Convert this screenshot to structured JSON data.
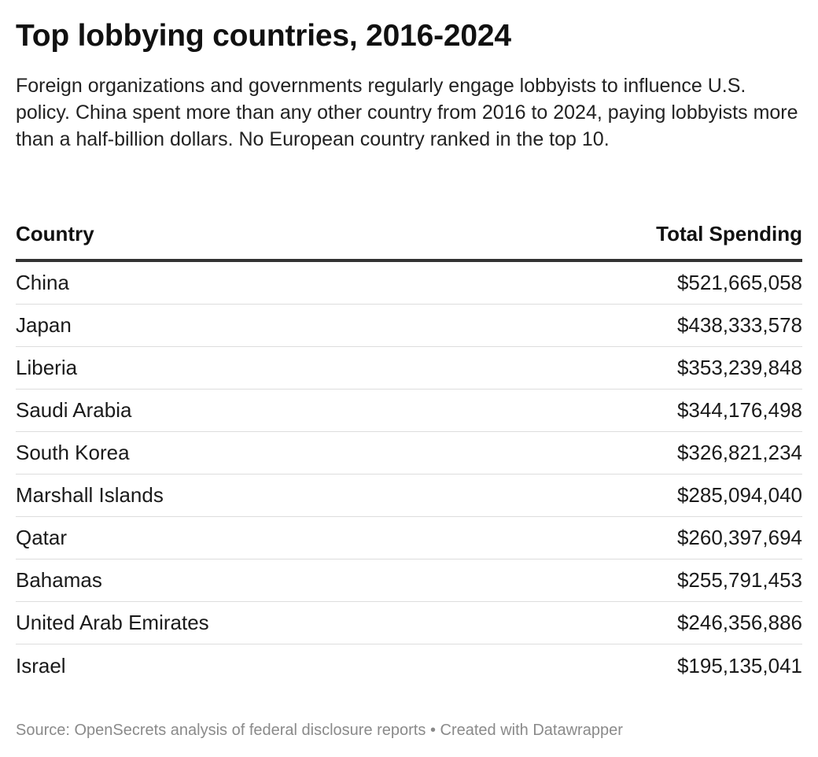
{
  "title": "Top lobbying countries, 2016-2024",
  "subtitle": "Foreign organizations and governments regularly engage lobbyists to influence U.S. policy. China spent more than any other country from 2016 to 2024, paying lobbyists more than a half-billion dollars. No European country ranked in the top 10.",
  "footer": {
    "source": "Source: OpenSecrets analysis of federal disclosure reports",
    "separator": "•",
    "credit": "Created with Datawrapper"
  },
  "chart_data": {
    "type": "table",
    "title": "Top lobbying countries, 2016-2024",
    "columns": [
      "Country",
      "Total Spending"
    ],
    "rows": [
      {
        "country": "China",
        "spending_display": "$521,665,058",
        "spending": 521665058
      },
      {
        "country": "Japan",
        "spending_display": "$438,333,578",
        "spending": 438333578
      },
      {
        "country": "Liberia",
        "spending_display": "$353,239,848",
        "spending": 353239848
      },
      {
        "country": "Saudi Arabia",
        "spending_display": "$344,176,498",
        "spending": 344176498
      },
      {
        "country": "South Korea",
        "spending_display": "$326,821,234",
        "spending": 326821234
      },
      {
        "country": "Marshall Islands",
        "spending_display": "$285,094,040",
        "spending": 285094040
      },
      {
        "country": "Qatar",
        "spending_display": "$260,397,694",
        "spending": 260397694
      },
      {
        "country": "Bahamas",
        "spending_display": "$255,791,453",
        "spending": 255791453
      },
      {
        "country": "United Arab Emirates",
        "spending_display": "$246,356,886",
        "spending": 246356886
      },
      {
        "country": "Israel",
        "spending_display": "$195,135,041",
        "spending": 195135041
      }
    ]
  }
}
